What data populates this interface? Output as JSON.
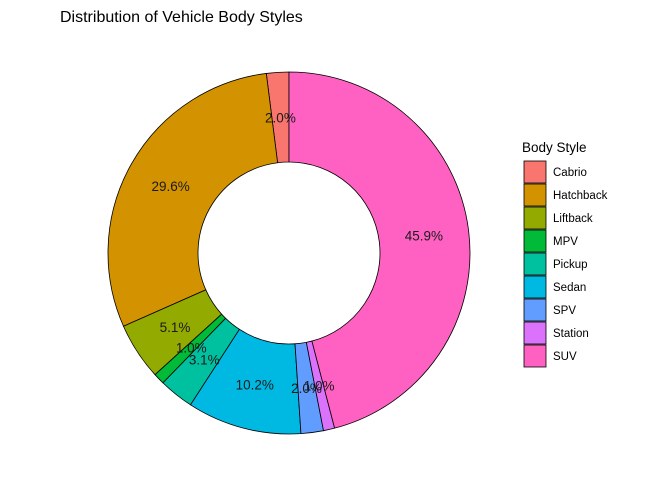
{
  "chart_data": {
    "type": "pie",
    "variant": "donut",
    "title": "Distribution of Vehicle Body Styles",
    "legend": {
      "title": "Body Style",
      "position": "right"
    },
    "slices": [
      {
        "category": "Cabrio",
        "value": 2.0,
        "label": "2.0%",
        "color": "#F8766D"
      },
      {
        "category": "Hatchback",
        "value": 29.6,
        "label": "29.6%",
        "color": "#D39200"
      },
      {
        "category": "Liftback",
        "value": 5.1,
        "label": "5.1%",
        "color": "#93AA00"
      },
      {
        "category": "MPV",
        "value": 1.0,
        "label": "1.0%",
        "color": "#00BA38"
      },
      {
        "category": "Pickup",
        "value": 3.1,
        "label": "3.1%",
        "color": "#00C19F"
      },
      {
        "category": "Sedan",
        "value": 10.2,
        "label": "10.2%",
        "color": "#00B9E3"
      },
      {
        "category": "SPV",
        "value": 2.0,
        "label": "2.0%",
        "color": "#619CFF"
      },
      {
        "category": "Station",
        "value": 1.0,
        "label": "1.0%",
        "color": "#DB72FB"
      },
      {
        "category": "SUV",
        "value": 45.9,
        "label": "45.9%",
        "color": "#FF61C3"
      }
    ]
  }
}
